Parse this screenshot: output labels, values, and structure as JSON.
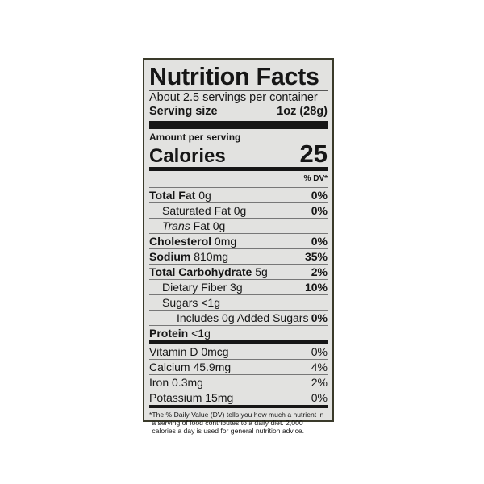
{
  "title": "Nutrition Facts",
  "servings": "About 2.5 servings per container",
  "serving_size": {
    "label": "Serving size",
    "value": "1oz (28g)"
  },
  "amount_per_serving": "Amount per serving",
  "calories": {
    "label": "Calories",
    "value": "25"
  },
  "dv_header": "% DV*",
  "nutrients": [
    {
      "name": "Total Fat",
      "amount": "0g",
      "dv": "0%",
      "bold": true,
      "indent": 0
    },
    {
      "name": "Saturated Fat",
      "amount": "0g",
      "dv": "0%",
      "bold": false,
      "indent": 1
    },
    {
      "name": "Trans",
      "name2": "Fat",
      "amount": "0g",
      "dv": "",
      "bold": false,
      "indent": 1
    },
    {
      "name": "Cholesterol",
      "amount": "0mg",
      "dv": "0%",
      "bold": true,
      "indent": 0
    },
    {
      "name": "Sodium",
      "amount": "810mg",
      "dv": "35%",
      "bold": true,
      "indent": 0
    },
    {
      "name": "Total Carbohydrate",
      "amount": "5g",
      "dv": "2%",
      "bold": true,
      "indent": 0
    },
    {
      "name": "Dietary Fiber",
      "amount": "3g",
      "dv": "10%",
      "bold": false,
      "indent": 1
    },
    {
      "name": "Sugars",
      "amount": "<1g",
      "dv": "",
      "bold": false,
      "indent": 1
    },
    {
      "name": "Includes 0g Added Sugars",
      "amount": "",
      "dv": "0%",
      "bold": false,
      "indent": 2
    },
    {
      "name": "Protein",
      "amount": "<1g",
      "dv": "",
      "bold": true,
      "indent": 0
    }
  ],
  "vitamins": [
    {
      "name": "Vitamin D 0mcg",
      "dv": "0%"
    },
    {
      "name": "Calcium 45.9mg",
      "dv": "4%"
    },
    {
      "name": "Iron 0.3mg",
      "dv": "2%"
    },
    {
      "name": "Potassium 15mg",
      "dv": "0%"
    }
  ],
  "footnote": {
    "mark": "*",
    "text": "The % Daily Value (DV) tells you how much a nutrient in a serving of food contributes to a daily diet. 2,000 calories a day is used for general nutrition advice."
  }
}
